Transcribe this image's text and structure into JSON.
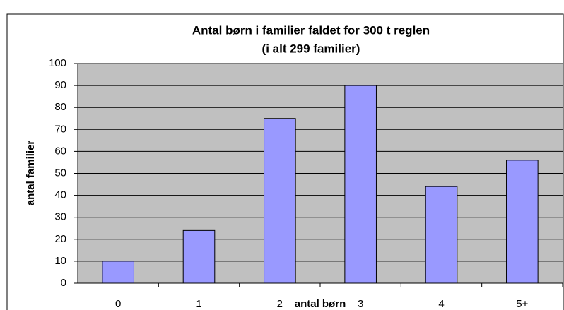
{
  "chart_data": {
    "type": "bar",
    "title": "Antal børn i familier faldet for 300 t reglen",
    "subtitle": "(i alt 299 familier)",
    "x_label": "antal børn",
    "y_label": "antal familier",
    "categories": [
      "0",
      "1",
      "2",
      "3",
      "4",
      "5+"
    ],
    "values": [
      10,
      24,
      75,
      90,
      44,
      56
    ],
    "color": "#9999ff",
    "ylim": [
      0,
      100
    ],
    "yticks": [
      0,
      10,
      20,
      30,
      40,
      50,
      60,
      70,
      80,
      90,
      100
    ],
    "grid": true
  }
}
